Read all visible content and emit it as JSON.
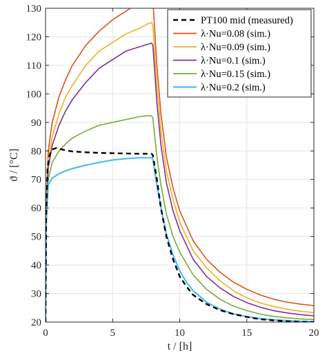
{
  "chart_data": {
    "type": "line",
    "xlabel": "t / [h]",
    "ylabel": "ϑ / [°C]",
    "xlim": [
      0,
      20
    ],
    "ylim": [
      20,
      130
    ],
    "x_ticks": [
      0,
      5,
      10,
      15,
      20
    ],
    "y_ticks": [
      20,
      30,
      40,
      50,
      60,
      70,
      80,
      90,
      100,
      110,
      120,
      130
    ],
    "grid": true,
    "legend_position": "top-right",
    "series": [
      {
        "name": "PT100 mid (measured)",
        "color": "#000000",
        "dash": "dashed",
        "x": [
          0,
          0.05,
          0.15,
          0.3,
          0.5,
          0.8,
          1,
          1.5,
          2,
          3,
          4,
          5,
          6,
          7,
          7.9,
          8,
          8.3,
          8.6,
          9,
          9.5,
          10,
          10.5,
          11,
          12,
          13,
          14,
          15,
          16,
          17,
          18,
          19,
          20
        ],
        "y": [
          20,
          58,
          74,
          78.5,
          80.5,
          81,
          80.8,
          80.2,
          79.8,
          79.5,
          79.3,
          79.2,
          79.1,
          79,
          79,
          78.5,
          70,
          60,
          50,
          42,
          36,
          32.5,
          29.5,
          26.3,
          24.2,
          22.8,
          21.8,
          21,
          20.6,
          20.3,
          20.1,
          20
        ]
      },
      {
        "name": "λ·Nu=0.08 (sim.)",
        "color": "#d95319",
        "x": [
          0,
          0.05,
          0.2,
          0.5,
          1,
          1.5,
          2,
          3,
          4,
          5,
          6,
          7,
          7.9,
          8,
          8.3,
          8.6,
          9,
          9.5,
          10,
          11,
          12,
          13,
          14,
          15,
          16,
          17,
          18,
          19,
          20
        ],
        "y": [
          20,
          62,
          80,
          90,
          99,
          105,
          110,
          117,
          122,
          126,
          129,
          132,
          134,
          133,
          110,
          93,
          78,
          67,
          59,
          48.5,
          42,
          37.5,
          34,
          31.5,
          29.5,
          28,
          27,
          26.3,
          25.8
        ]
      },
      {
        "name": "λ·Nu=0.09 (sim.)",
        "color": "#edb120",
        "x": [
          0,
          0.05,
          0.2,
          0.5,
          1,
          1.5,
          2,
          3,
          4,
          5,
          6,
          7,
          7.6,
          7.9,
          8,
          8.3,
          8.6,
          9,
          9.5,
          10,
          11,
          12,
          13,
          14,
          15,
          16,
          17,
          18,
          19,
          20
        ],
        "y": [
          20,
          60,
          77,
          85,
          93,
          99,
          103,
          110,
          115,
          118,
          121,
          123,
          124.5,
          125,
          124,
          103,
          87,
          73,
          63,
          55,
          45,
          39,
          34.5,
          31,
          28.5,
          26.7,
          25.5,
          24.5,
          23.8,
          23.3
        ]
      },
      {
        "name": "λ·Nu=0.1 (sim.)",
        "color": "#7e2f8e",
        "x": [
          0,
          0.05,
          0.2,
          0.5,
          1,
          1.5,
          2,
          3,
          4,
          5,
          6,
          7,
          7.9,
          8,
          8.3,
          8.6,
          9,
          9.5,
          10,
          11,
          12,
          13,
          14,
          15,
          16,
          17,
          18,
          19,
          20
        ],
        "y": [
          20,
          58,
          74,
          82,
          89,
          94,
          98,
          104,
          109,
          112,
          115,
          116.5,
          117.8,
          117,
          97,
          82,
          69,
          59,
          52,
          42,
          36,
          32,
          29,
          26.8,
          25.2,
          24,
          23.2,
          22.6,
          22.2
        ]
      },
      {
        "name": "λ·Nu=0.15 (sim.)",
        "color": "#77ac30",
        "x": [
          0,
          0.05,
          0.2,
          0.5,
          1,
          1.5,
          2,
          3,
          4,
          5,
          6,
          7,
          7.5,
          7.9,
          8,
          8.3,
          8.6,
          9,
          9.5,
          10,
          11,
          12,
          13,
          14,
          15,
          16,
          17,
          18,
          19,
          20
        ],
        "y": [
          20,
          55,
          70,
          76,
          80,
          82.5,
          84.5,
          87,
          89,
          90,
          91,
          92,
          92.3,
          92.3,
          91.5,
          78,
          68,
          58,
          50,
          44.5,
          36.5,
          31.5,
          28,
          25.6,
          24,
          22.8,
          22,
          21.5,
          21.1,
          20.9
        ]
      },
      {
        "name": "λ·Nu=0.2 (sim.)",
        "color": "#4dbeee",
        "width": 2.2,
        "x": [
          0,
          0.05,
          0.2,
          0.5,
          1,
          1.5,
          2,
          3,
          4,
          5,
          6,
          7,
          7.9,
          8,
          8.3,
          8.6,
          9,
          9.5,
          10,
          10.5,
          11,
          12,
          13,
          14,
          15,
          16,
          17,
          18,
          19,
          20
        ],
        "y": [
          20,
          55,
          68,
          70.5,
          72,
          73,
          73.8,
          75,
          76,
          76.8,
          77.3,
          77.6,
          77.6,
          77,
          68,
          60,
          51,
          43.5,
          38,
          34,
          31,
          27,
          24.5,
          22.9,
          21.9,
          21.2,
          20.8,
          20.5,
          20.3,
          20.2
        ]
      }
    ]
  }
}
